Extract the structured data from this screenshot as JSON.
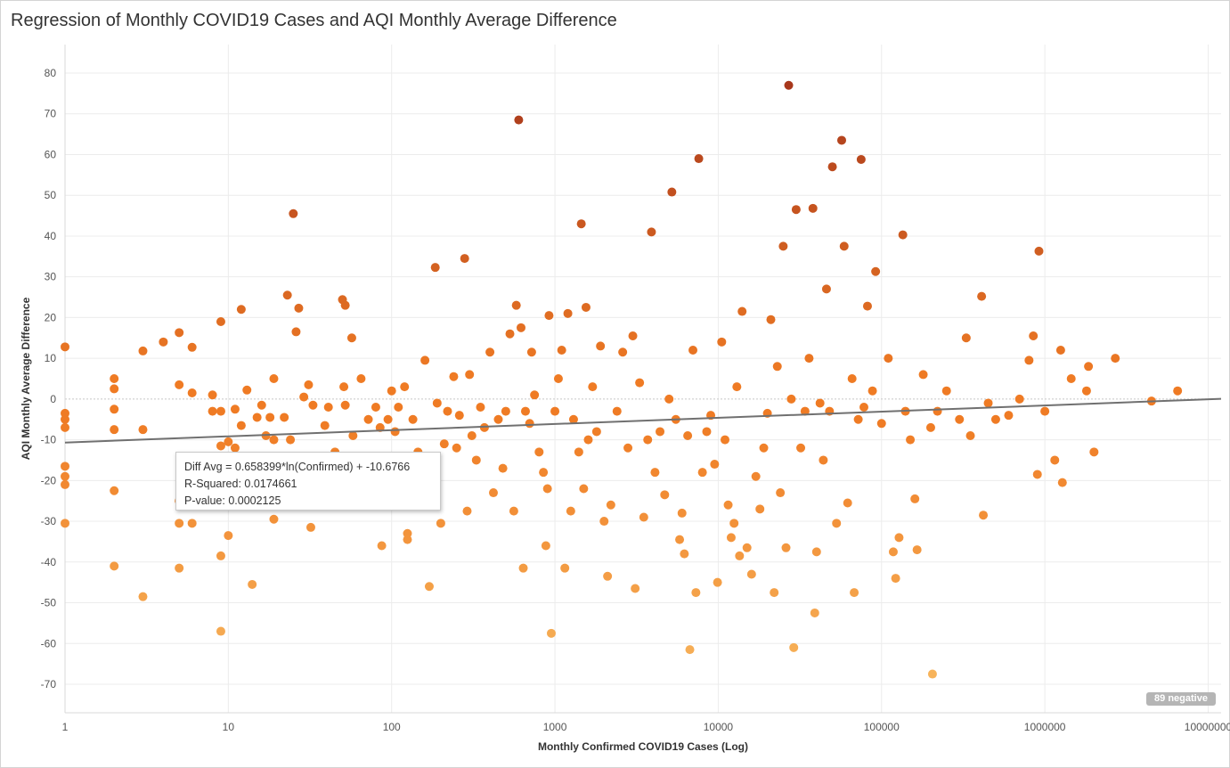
{
  "chart_data": {
    "type": "scatter",
    "title": "Regression of Monthly COVID19 Cases and AQI Monthly Average Difference",
    "xlabel": "Monthly Confirmed COVID19 Cases (Log)",
    "ylabel": "AQI Monthly Average Difference",
    "x_scale": "log",
    "xlim": [
      1,
      12000000
    ],
    "ylim": [
      -77,
      87
    ],
    "x_ticks": [
      "1",
      "10",
      "100",
      "1000",
      "10000",
      "100000",
      "1000000",
      "10000000"
    ],
    "y_ticks": [
      "80",
      "70",
      "60",
      "50",
      "40",
      "30",
      "20",
      "10",
      "0",
      "-10",
      "-20",
      "-30",
      "-40",
      "-50",
      "-60",
      "-70"
    ],
    "grid": true,
    "trend_line": {
      "equation": "Diff Avg = 0.658399*ln(Confirmed) + -10.6766",
      "slope": 0.658399,
      "intercept": -10.6766
    },
    "tooltip": {
      "line1": "Diff Avg = 0.658399*ln(Confirmed) + -10.6766",
      "line2": "R-Squared: 0.0174661",
      "line3": "P-value: 0.0002125"
    },
    "badge": "89 negative",
    "color_scale": {
      "low": "#f7b55c",
      "mid": "#ef7b24",
      "high": "#a8381c"
    },
    "points": [
      [
        1,
        12.8
      ],
      [
        1,
        -3.5
      ],
      [
        1,
        -5
      ],
      [
        1,
        -7
      ],
      [
        1,
        -16.5
      ],
      [
        1,
        -19
      ],
      [
        1,
        -21
      ],
      [
        1,
        -30.5
      ],
      [
        2,
        5
      ],
      [
        2,
        2.5
      ],
      [
        2,
        -2.5
      ],
      [
        2,
        -7.5
      ],
      [
        2,
        -22.5
      ],
      [
        2,
        -41
      ],
      [
        3,
        11.8
      ],
      [
        3,
        -7.5
      ],
      [
        3,
        -48.5
      ],
      [
        4,
        14
      ],
      [
        5,
        16.3
      ],
      [
        5,
        3.5
      ],
      [
        5,
        -25
      ],
      [
        5,
        -30.5
      ],
      [
        5,
        -41.5
      ],
      [
        6,
        12.7
      ],
      [
        6,
        1.5
      ],
      [
        6,
        -30.5
      ],
      [
        8,
        1
      ],
      [
        8,
        -3
      ],
      [
        9,
        19
      ],
      [
        9,
        -3
      ],
      [
        9,
        -11.5
      ],
      [
        9,
        -38.5
      ],
      [
        9,
        -57
      ],
      [
        10,
        -10.5
      ],
      [
        10,
        -33.5
      ],
      [
        11,
        -2.5
      ],
      [
        11,
        -12
      ],
      [
        12,
        22
      ],
      [
        12,
        -6.5
      ],
      [
        13,
        2.2
      ],
      [
        14,
        -45.5
      ],
      [
        15,
        -4.5
      ],
      [
        16,
        -1.5
      ],
      [
        17,
        -9
      ],
      [
        18,
        -4.5
      ],
      [
        19,
        5
      ],
      [
        19,
        -10
      ],
      [
        19,
        -29.5
      ],
      [
        22,
        -4.5
      ],
      [
        23,
        25.5
      ],
      [
        24,
        -10
      ],
      [
        25,
        45.5
      ],
      [
        26,
        16.5
      ],
      [
        27,
        22.3
      ],
      [
        29,
        0.5
      ],
      [
        31,
        3.5
      ],
      [
        32,
        -31.5
      ],
      [
        33,
        -1.5
      ],
      [
        39,
        -6.5
      ],
      [
        41,
        -2
      ],
      [
        45,
        -13
      ],
      [
        50,
        24.4
      ],
      [
        51,
        3
      ],
      [
        52,
        23
      ],
      [
        52,
        -1.5
      ],
      [
        57,
        15
      ],
      [
        58,
        -9
      ],
      [
        65,
        5
      ],
      [
        72,
        -5
      ],
      [
        80,
        -2
      ],
      [
        85,
        -7
      ],
      [
        87,
        -36
      ],
      [
        95,
        -5
      ],
      [
        100,
        2
      ],
      [
        105,
        -8
      ],
      [
        110,
        -2
      ],
      [
        120,
        3
      ],
      [
        125,
        -33
      ],
      [
        125,
        -34.5
      ],
      [
        135,
        -5
      ],
      [
        145,
        -13
      ],
      [
        160,
        9.5
      ],
      [
        170,
        -46
      ],
      [
        185,
        32.3
      ],
      [
        190,
        -1
      ],
      [
        200,
        -30.5
      ],
      [
        210,
        -11
      ],
      [
        220,
        -3
      ],
      [
        240,
        5.5
      ],
      [
        250,
        -12
      ],
      [
        260,
        -4
      ],
      [
        280,
        34.5
      ],
      [
        290,
        -27.5
      ],
      [
        300,
        6
      ],
      [
        310,
        -9
      ],
      [
        330,
        -15
      ],
      [
        350,
        -2
      ],
      [
        370,
        -7
      ],
      [
        400,
        11.5
      ],
      [
        420,
        -23
      ],
      [
        450,
        -5
      ],
      [
        480,
        -17
      ],
      [
        500,
        -3
      ],
      [
        530,
        16
      ],
      [
        560,
        -27.5
      ],
      [
        580,
        23
      ],
      [
        600,
        68.5
      ],
      [
        620,
        17.5
      ],
      [
        640,
        -41.5
      ],
      [
        660,
        -3
      ],
      [
        700,
        -6
      ],
      [
        720,
        11.5
      ],
      [
        750,
        1
      ],
      [
        800,
        -13
      ],
      [
        850,
        -18
      ],
      [
        880,
        -36
      ],
      [
        900,
        -22
      ],
      [
        920,
        20.5
      ],
      [
        950,
        -57.5
      ],
      [
        1000,
        -3
      ],
      [
        1050,
        5
      ],
      [
        1100,
        12
      ],
      [
        1150,
        -41.5
      ],
      [
        1200,
        21
      ],
      [
        1250,
        -27.5
      ],
      [
        1300,
        -5
      ],
      [
        1400,
        -13
      ],
      [
        1450,
        43
      ],
      [
        1500,
        -22
      ],
      [
        1550,
        22.5
      ],
      [
        1600,
        -10
      ],
      [
        1700,
        3
      ],
      [
        1800,
        -8
      ],
      [
        1900,
        13
      ],
      [
        2000,
        -30
      ],
      [
        2100,
        -43.5
      ],
      [
        2200,
        -26
      ],
      [
        2400,
        -3
      ],
      [
        2600,
        11.5
      ],
      [
        2800,
        -12
      ],
      [
        3000,
        15.5
      ],
      [
        3100,
        -46.5
      ],
      [
        3300,
        4
      ],
      [
        3500,
        -29
      ],
      [
        3700,
        -10
      ],
      [
        3900,
        41
      ],
      [
        4100,
        -18
      ],
      [
        4400,
        -8
      ],
      [
        4700,
        -23.5
      ],
      [
        5000,
        0
      ],
      [
        5200,
        50.8
      ],
      [
        5500,
        -5
      ],
      [
        5800,
        -34.5
      ],
      [
        6000,
        -28
      ],
      [
        6200,
        -38
      ],
      [
        6500,
        -9
      ],
      [
        6700,
        -61.5
      ],
      [
        7000,
        12
      ],
      [
        7300,
        -47.5
      ],
      [
        7600,
        59
      ],
      [
        8000,
        -18
      ],
      [
        8500,
        -8
      ],
      [
        9000,
        -4
      ],
      [
        9500,
        -16
      ],
      [
        9900,
        -45
      ],
      [
        10500,
        14
      ],
      [
        11000,
        -10
      ],
      [
        11500,
        -26
      ],
      [
        12000,
        -34
      ],
      [
        12500,
        -30.5
      ],
      [
        13000,
        3
      ],
      [
        13500,
        -38.5
      ],
      [
        14000,
        21.5
      ],
      [
        15000,
        -36.5
      ],
      [
        16000,
        -43
      ],
      [
        17000,
        -19
      ],
      [
        18000,
        -27
      ],
      [
        19000,
        -12
      ],
      [
        20000,
        -3.5
      ],
      [
        21000,
        19.5
      ],
      [
        22000,
        -47.5
      ],
      [
        23000,
        8
      ],
      [
        24000,
        -23
      ],
      [
        25000,
        37.5
      ],
      [
        26000,
        -36.5
      ],
      [
        27000,
        77
      ],
      [
        28000,
        0
      ],
      [
        29000,
        -61
      ],
      [
        30000,
        46.5
      ],
      [
        32000,
        -12
      ],
      [
        34000,
        -3
      ],
      [
        36000,
        10
      ],
      [
        38000,
        46.8
      ],
      [
        39000,
        -52.5
      ],
      [
        40000,
        -37.5
      ],
      [
        42000,
        -1
      ],
      [
        44000,
        -15
      ],
      [
        46000,
        27
      ],
      [
        48000,
        -3
      ],
      [
        50000,
        57
      ],
      [
        53000,
        -30.5
      ],
      [
        57000,
        63.5
      ],
      [
        59000,
        37.5
      ],
      [
        62000,
        -25.5
      ],
      [
        66000,
        5
      ],
      [
        68000,
        -47.5
      ],
      [
        72000,
        -5
      ],
      [
        75000,
        58.8
      ],
      [
        78000,
        -2
      ],
      [
        82000,
        22.8
      ],
      [
        88000,
        2
      ],
      [
        92000,
        31.3
      ],
      [
        100000,
        -6
      ],
      [
        110000,
        10
      ],
      [
        118000,
        -37.5
      ],
      [
        122000,
        -44
      ],
      [
        128000,
        -34
      ],
      [
        135000,
        40.3
      ],
      [
        140000,
        -3
      ],
      [
        150000,
        -10
      ],
      [
        160000,
        -24.5
      ],
      [
        165000,
        -37
      ],
      [
        180000,
        6
      ],
      [
        200000,
        -7
      ],
      [
        205000,
        -67.5
      ],
      [
        220000,
        -3
      ],
      [
        250000,
        2
      ],
      [
        300000,
        -5
      ],
      [
        330000,
        15
      ],
      [
        350000,
        -9
      ],
      [
        410000,
        25.2
      ],
      [
        420000,
        -28.5
      ],
      [
        450000,
        -1
      ],
      [
        500000,
        -5
      ],
      [
        600000,
        -4
      ],
      [
        700000,
        0
      ],
      [
        800000,
        9.5
      ],
      [
        850000,
        15.5
      ],
      [
        900000,
        -18.5
      ],
      [
        920000,
        36.3
      ],
      [
        1000000,
        -3
      ],
      [
        1150000,
        -15
      ],
      [
        1250000,
        12
      ],
      [
        1280000,
        -20.5
      ],
      [
        1450000,
        5
      ],
      [
        1800000,
        2
      ],
      [
        1850000,
        8
      ],
      [
        2000000,
        -13
      ],
      [
        2700000,
        10
      ],
      [
        4500000,
        -0.5
      ],
      [
        6500000,
        2
      ]
    ]
  }
}
